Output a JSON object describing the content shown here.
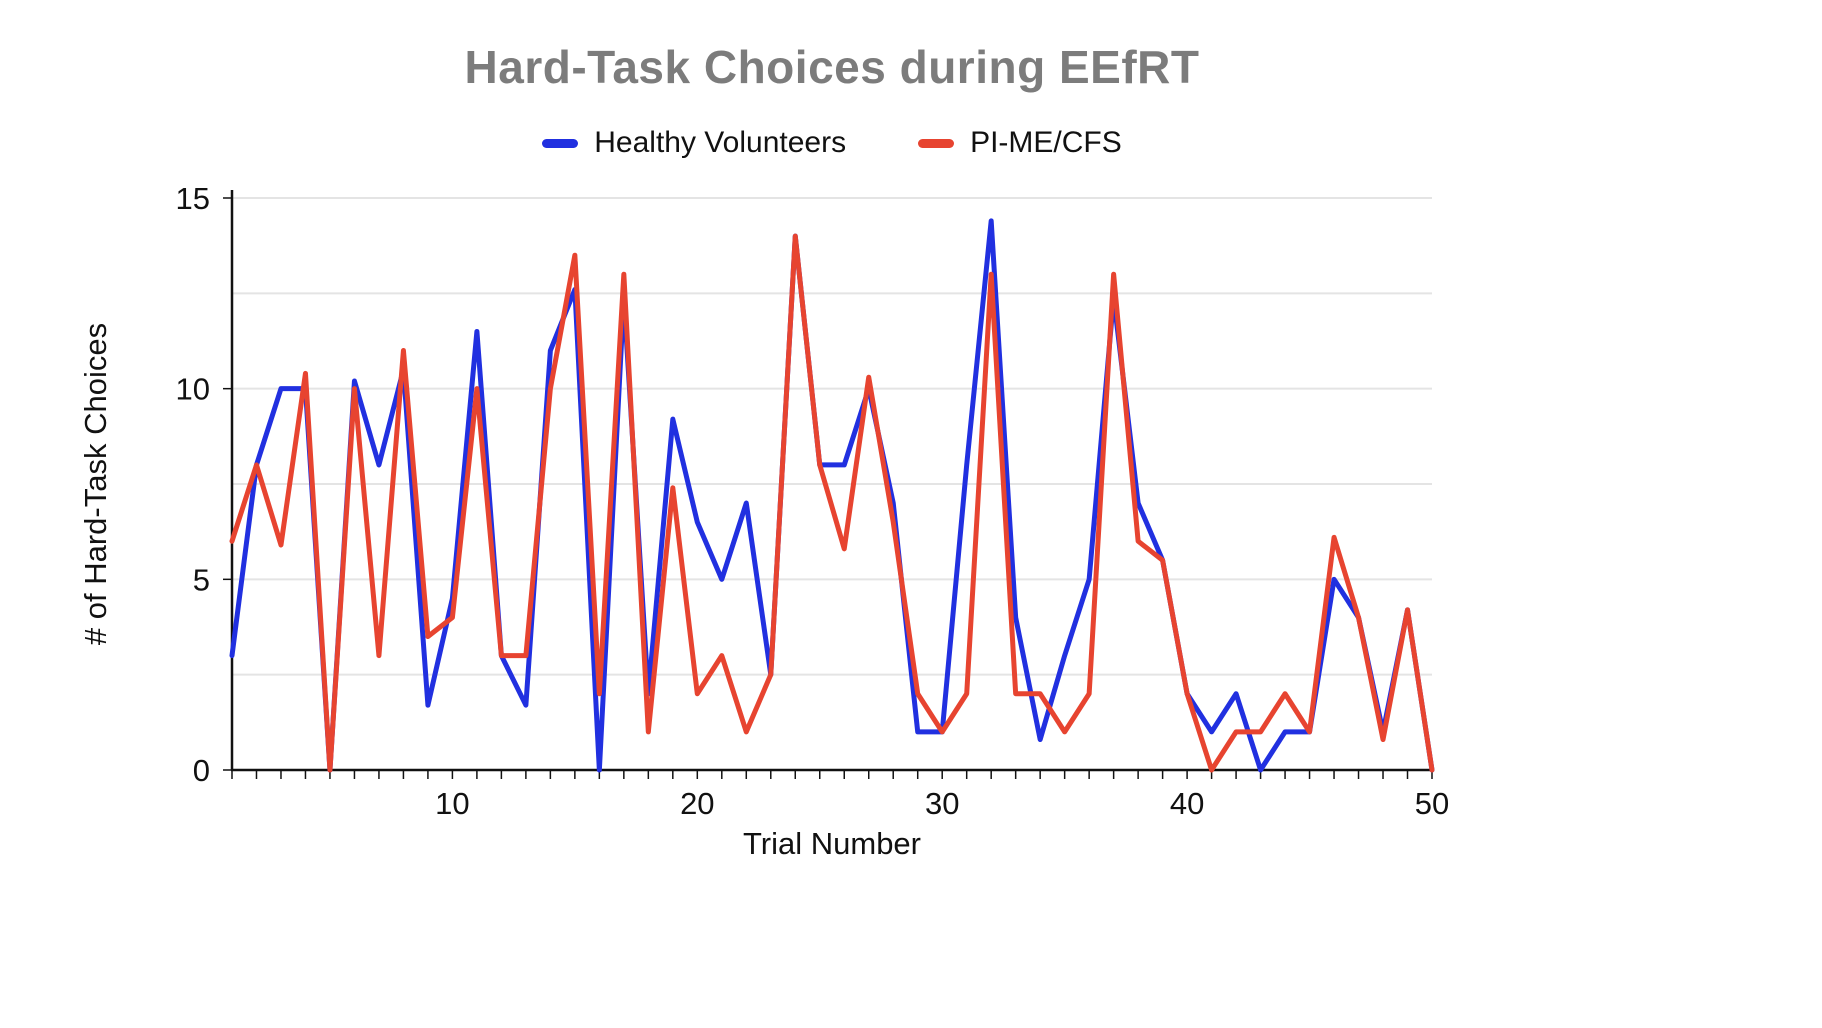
{
  "chart_data": {
    "type": "line",
    "title": "Hard-Task Choices during EEfRT",
    "xlabel": "Trial Number",
    "ylabel": "# of Hard-Task Choices",
    "xlim": [
      1,
      50
    ],
    "ylim": [
      0,
      15
    ],
    "x_ticks": [
      10,
      20,
      30,
      40,
      50
    ],
    "y_ticks": [
      0,
      5,
      10,
      15
    ],
    "grid": "on",
    "grid_interval": 2.5,
    "legend_position": "top",
    "x": [
      1,
      2,
      3,
      4,
      5,
      6,
      7,
      8,
      9,
      10,
      11,
      12,
      13,
      14,
      15,
      16,
      17,
      18,
      19,
      20,
      21,
      22,
      23,
      24,
      25,
      26,
      27,
      28,
      29,
      30,
      31,
      32,
      33,
      34,
      35,
      36,
      37,
      38,
      39,
      40,
      41,
      42,
      43,
      44,
      45,
      46,
      47,
      48,
      49,
      50
    ],
    "series": [
      {
        "name": "Healthy Volunteers",
        "color": "#2130E0",
        "values": [
          3,
          8,
          10,
          10,
          0,
          10.2,
          8,
          10.5,
          1.7,
          4.5,
          11.5,
          3,
          1.7,
          11,
          12.6,
          0,
          12.4,
          2,
          9.2,
          6.5,
          5,
          7,
          2.5,
          14,
          8,
          8,
          10,
          7,
          1,
          1,
          8,
          14.4,
          4,
          0.8,
          3,
          5,
          12.4,
          7,
          5.5,
          2,
          1,
          2,
          0,
          1,
          1,
          5,
          4,
          1,
          4.2,
          0
        ]
      },
      {
        "name": "PI-ME/CFS",
        "color": "#E74430",
        "values": [
          6,
          8,
          5.9,
          10.4,
          0,
          10,
          3,
          11,
          3.5,
          4,
          10,
          3,
          3,
          10,
          13.5,
          2,
          13,
          1,
          7.4,
          2,
          3,
          1,
          2.5,
          14,
          8,
          5.8,
          10.3,
          6.5,
          2,
          1,
          2,
          13,
          2,
          2,
          1,
          2,
          13,
          6,
          5.5,
          2,
          0,
          1,
          1,
          2,
          1,
          6.1,
          4,
          0.8,
          4.2,
          0
        ]
      }
    ]
  },
  "colors": {
    "title_gray": "#7c7c7c",
    "axis_black": "#111111",
    "gridline_gray": "#e4e4e4",
    "healthy_blue": "#2130E0",
    "pime_red": "#E74430"
  }
}
